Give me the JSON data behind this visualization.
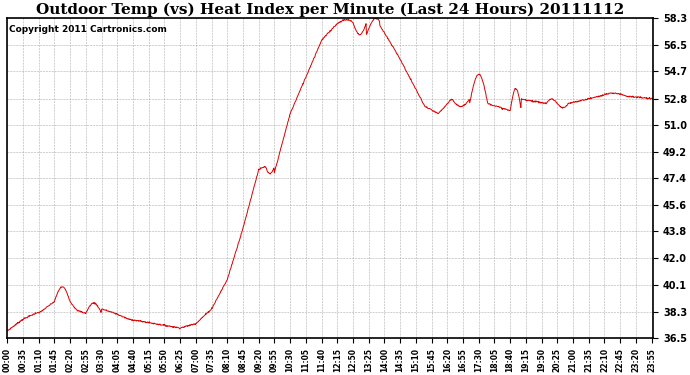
{
  "title": "Outdoor Temp (vs) Heat Index per Minute (Last 24 Hours) 20111112",
  "copyright_text": "Copyright 2011 Cartronics.com",
  "y_min": 36.5,
  "y_max": 58.3,
  "y_ticks": [
    36.5,
    38.3,
    40.1,
    42.0,
    43.8,
    45.6,
    47.4,
    49.2,
    51.0,
    52.8,
    54.7,
    56.5,
    58.3
  ],
  "line_color": "#dd0000",
  "bg_color": "#ffffff",
  "grid_color": "#999999",
  "title_fontsize": 11,
  "copyright_fontsize": 6.5,
  "x_tick_interval_minutes": 35,
  "total_minutes": 1440
}
